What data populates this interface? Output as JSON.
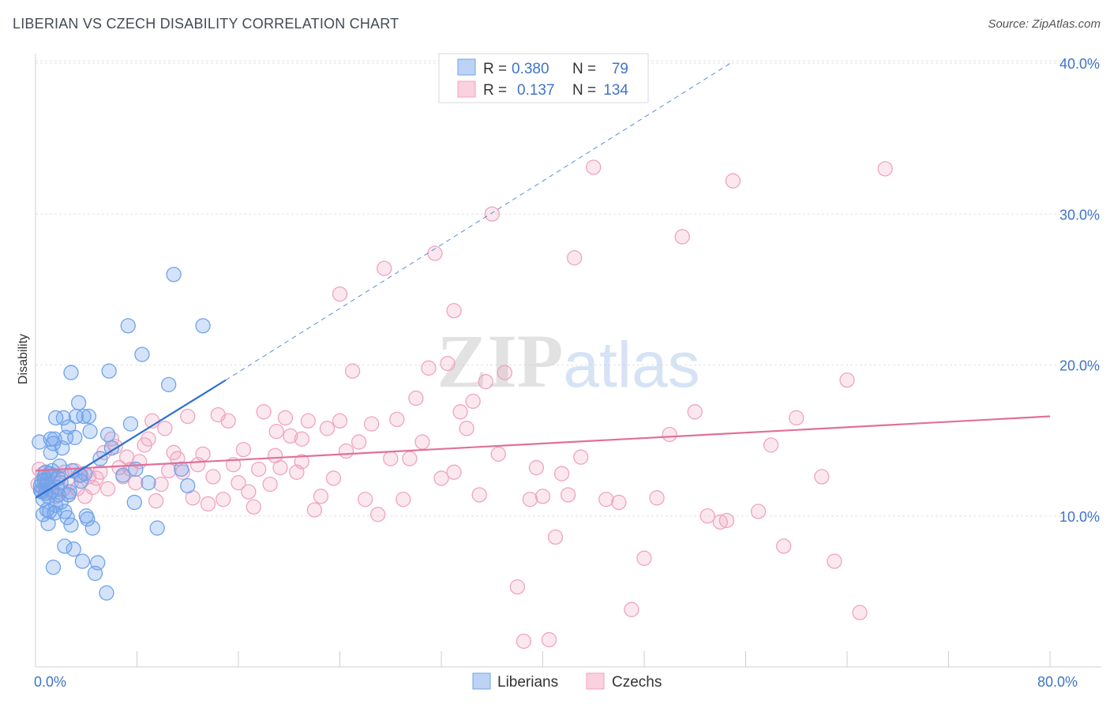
{
  "chart_data": {
    "type": "scatter",
    "title": "LIBERIAN VS CZECH DISABILITY CORRELATION CHART",
    "source": "Source: ZipAtlas.com",
    "ylabel": "Disability",
    "xlim": [
      0,
      80
    ],
    "ylim": [
      0,
      40
    ],
    "x_tick_labels": [
      {
        "value": 0,
        "label": "0.0%"
      },
      {
        "value": 80,
        "label": "80.0%"
      }
    ],
    "y_tick_labels": [
      {
        "value": 10,
        "label": "10.0%"
      },
      {
        "value": 20,
        "label": "20.0%"
      },
      {
        "value": 30,
        "label": "30.0%"
      },
      {
        "value": 40,
        "label": "40.0%"
      }
    ],
    "grid": true,
    "watermark": "ZIPatlas",
    "legend": {
      "position": "top-center",
      "rows": [
        {
          "r_label": "R =",
          "r_value": "0.380",
          "n_label": "N =",
          "n_value": "79"
        },
        {
          "r_label": "R =",
          "r_value": "0.137",
          "n_label": "N =",
          "n_value": "134"
        }
      ]
    },
    "series": [
      {
        "name": "Liberians",
        "color": "#6fa3ea",
        "trend": {
          "x0": 0,
          "y0": 11.2,
          "x1": 15,
          "y1": 19.0,
          "dash_to_x": 55,
          "dash_to_y": 40.1,
          "color": "#2f6fd1"
        },
        "points": [
          [
            0.3,
            14.9
          ],
          [
            0.4,
            12.0
          ],
          [
            0.5,
            11.6
          ],
          [
            0.5,
            12.3
          ],
          [
            0.6,
            11.1
          ],
          [
            0.6,
            10.1
          ],
          [
            0.7,
            12.4
          ],
          [
            0.8,
            11.5
          ],
          [
            0.8,
            12.9
          ],
          [
            0.9,
            12.1
          ],
          [
            1.0,
            9.5
          ],
          [
            1.0,
            11.3
          ],
          [
            1.1,
            10.3
          ],
          [
            1.2,
            14.2
          ],
          [
            1.2,
            15.1
          ],
          [
            1.3,
            13.0
          ],
          [
            1.3,
            11.7
          ],
          [
            1.4,
            14.8
          ],
          [
            1.4,
            6.6
          ],
          [
            1.5,
            15.1
          ],
          [
            1.6,
            16.5
          ],
          [
            1.6,
            10.7
          ],
          [
            1.7,
            11.9
          ],
          [
            1.8,
            12.5
          ],
          [
            1.8,
            11.4
          ],
          [
            2.0,
            10.9
          ],
          [
            2.0,
            12.2
          ],
          [
            2.1,
            14.5
          ],
          [
            2.2,
            16.5
          ],
          [
            2.3,
            8.0
          ],
          [
            2.3,
            10.3
          ],
          [
            2.4,
            15.2
          ],
          [
            2.5,
            9.9
          ],
          [
            2.6,
            15.9
          ],
          [
            2.7,
            11.6
          ],
          [
            2.8,
            9.4
          ],
          [
            2.8,
            19.5
          ],
          [
            3.0,
            7.8
          ],
          [
            3.1,
            15.2
          ],
          [
            3.2,
            16.6
          ],
          [
            3.4,
            17.5
          ],
          [
            3.6,
            12.3
          ],
          [
            3.7,
            7.0
          ],
          [
            3.8,
            16.6
          ],
          [
            3.9,
            12.8
          ],
          [
            4.0,
            10.0
          ],
          [
            4.2,
            16.6
          ],
          [
            4.3,
            15.6
          ],
          [
            4.5,
            9.2
          ],
          [
            4.7,
            6.2
          ],
          [
            4.9,
            6.9
          ],
          [
            5.1,
            13.8
          ],
          [
            5.6,
            4.9
          ],
          [
            5.8,
            19.6
          ],
          [
            5.7,
            15.4
          ],
          [
            6.9,
            12.7
          ],
          [
            7.5,
            16.1
          ],
          [
            7.3,
            22.6
          ],
          [
            7.8,
            10.9
          ],
          [
            8.4,
            20.7
          ],
          [
            8.9,
            12.2
          ],
          [
            9.6,
            9.2
          ],
          [
            10.9,
            26.0
          ],
          [
            11.5,
            13.1
          ],
          [
            12.0,
            12.0
          ],
          [
            13.2,
            22.6
          ],
          [
            10.5,
            18.7
          ],
          [
            0.7,
            12.6
          ],
          [
            1.9,
            13.3
          ],
          [
            1.1,
            12.8
          ],
          [
            0.4,
            11.7
          ],
          [
            2.6,
            11.4
          ],
          [
            4.1,
            9.8
          ],
          [
            3.5,
            12.7
          ],
          [
            6.0,
            14.5
          ],
          [
            7.9,
            13.1
          ],
          [
            2.9,
            13.0
          ],
          [
            0.9,
            10.4
          ],
          [
            1.5,
            10.2
          ]
        ]
      },
      {
        "name": "Czechs",
        "color": "#f0a3be",
        "trend": {
          "x0": 0,
          "y0": 13.0,
          "x1": 80,
          "y1": 16.6,
          "color": "#e0709a"
        },
        "points": [
          [
            0.2,
            12.1
          ],
          [
            0.3,
            13.1
          ],
          [
            0.5,
            11.6
          ],
          [
            0.6,
            12.8
          ],
          [
            0.8,
            11.9
          ],
          [
            1.0,
            12.4
          ],
          [
            1.2,
            11.6
          ],
          [
            1.4,
            12.7
          ],
          [
            1.6,
            11.3
          ],
          [
            1.8,
            12.6
          ],
          [
            2.1,
            11.7
          ],
          [
            2.3,
            12.9
          ],
          [
            2.6,
            11.4
          ],
          [
            2.8,
            12.2
          ],
          [
            3.1,
            13.0
          ],
          [
            3.3,
            11.8
          ],
          [
            3.6,
            12.7
          ],
          [
            3.9,
            11.3
          ],
          [
            4.2,
            12.6
          ],
          [
            4.5,
            11.9
          ],
          [
            4.8,
            12.5
          ],
          [
            5.1,
            12.9
          ],
          [
            5.4,
            14.2
          ],
          [
            5.7,
            11.8
          ],
          [
            6.0,
            15.1
          ],
          [
            6.3,
            14.6
          ],
          [
            6.6,
            13.2
          ],
          [
            6.9,
            12.6
          ],
          [
            7.2,
            13.9
          ],
          [
            7.5,
            13.1
          ],
          [
            7.9,
            12.2
          ],
          [
            8.2,
            13.6
          ],
          [
            8.6,
            14.7
          ],
          [
            8.9,
            15.1
          ],
          [
            9.2,
            16.3
          ],
          [
            9.5,
            11.0
          ],
          [
            9.9,
            12.1
          ],
          [
            10.2,
            15.8
          ],
          [
            10.5,
            13.0
          ],
          [
            10.9,
            14.2
          ],
          [
            11.2,
            13.8
          ],
          [
            11.6,
            12.9
          ],
          [
            12.0,
            16.6
          ],
          [
            12.4,
            11.2
          ],
          [
            12.8,
            13.4
          ],
          [
            13.2,
            14.1
          ],
          [
            13.6,
            10.8
          ],
          [
            14.0,
            12.6
          ],
          [
            14.4,
            16.7
          ],
          [
            14.8,
            11.1
          ],
          [
            15.2,
            16.3
          ],
          [
            15.6,
            13.4
          ],
          [
            16.0,
            12.2
          ],
          [
            16.4,
            14.4
          ],
          [
            16.8,
            11.6
          ],
          [
            17.2,
            10.6
          ],
          [
            17.6,
            13.1
          ],
          [
            18.0,
            16.9
          ],
          [
            18.5,
            12.1
          ],
          [
            18.9,
            14.0
          ],
          [
            19.3,
            13.2
          ],
          [
            19.7,
            16.5
          ],
          [
            20.1,
            15.3
          ],
          [
            20.6,
            12.9
          ],
          [
            21.0,
            13.6
          ],
          [
            21.5,
            16.3
          ],
          [
            22.0,
            10.4
          ],
          [
            22.5,
            11.3
          ],
          [
            23.0,
            15.8
          ],
          [
            23.5,
            12.5
          ],
          [
            24.0,
            16.3
          ],
          [
            24.5,
            14.3
          ],
          [
            25.0,
            19.6
          ],
          [
            25.5,
            14.9
          ],
          [
            26.0,
            11.1
          ],
          [
            26.5,
            16.1
          ],
          [
            27.0,
            10.1
          ],
          [
            27.5,
            26.4
          ],
          [
            28.0,
            13.8
          ],
          [
            28.5,
            16.4
          ],
          [
            29.0,
            11.1
          ],
          [
            29.5,
            13.8
          ],
          [
            30.0,
            17.8
          ],
          [
            30.5,
            14.9
          ],
          [
            31.0,
            19.8
          ],
          [
            31.5,
            27.4
          ],
          [
            32.0,
            12.5
          ],
          [
            32.5,
            20.1
          ],
          [
            33.0,
            23.6
          ],
          [
            33.5,
            16.9
          ],
          [
            34.0,
            15.8
          ],
          [
            34.5,
            17.6
          ],
          [
            35.0,
            11.4
          ],
          [
            35.5,
            18.9
          ],
          [
            36.0,
            30.0
          ],
          [
            36.5,
            14.1
          ],
          [
            37.0,
            19.5
          ],
          [
            38.0,
            5.3
          ],
          [
            38.5,
            1.7
          ],
          [
            39.0,
            11.1
          ],
          [
            39.5,
            13.2
          ],
          [
            40.0,
            11.3
          ],
          [
            40.5,
            1.8
          ],
          [
            41.0,
            8.6
          ],
          [
            41.5,
            12.8
          ],
          [
            42.0,
            11.4
          ],
          [
            42.5,
            27.1
          ],
          [
            43.0,
            13.9
          ],
          [
            44.0,
            33.1
          ],
          [
            45.0,
            11.1
          ],
          [
            46.0,
            10.9
          ],
          [
            47.0,
            3.8
          ],
          [
            48.0,
            7.2
          ],
          [
            49.0,
            11.2
          ],
          [
            50.0,
            15.4
          ],
          [
            51.0,
            28.5
          ],
          [
            52.0,
            16.9
          ],
          [
            53.0,
            10.0
          ],
          [
            54.0,
            9.6
          ],
          [
            55.0,
            32.2
          ],
          [
            57.0,
            10.3
          ],
          [
            58.0,
            14.7
          ],
          [
            59.0,
            8.0
          ],
          [
            60.0,
            16.5
          ],
          [
            62.0,
            12.6
          ],
          [
            63.0,
            7.0
          ],
          [
            64.0,
            19.0
          ],
          [
            65.0,
            3.6
          ],
          [
            67.0,
            33.0
          ],
          [
            24.0,
            24.7
          ],
          [
            21.0,
            15.1
          ],
          [
            33.0,
            12.9
          ],
          [
            54.5,
            9.7
          ],
          [
            19.0,
            15.6
          ]
        ]
      }
    ]
  },
  "bottom_legend": [
    {
      "label": "Liberians",
      "color": "#6fa3ea"
    },
    {
      "label": "Czechs",
      "color": "#f0a3be"
    }
  ]
}
